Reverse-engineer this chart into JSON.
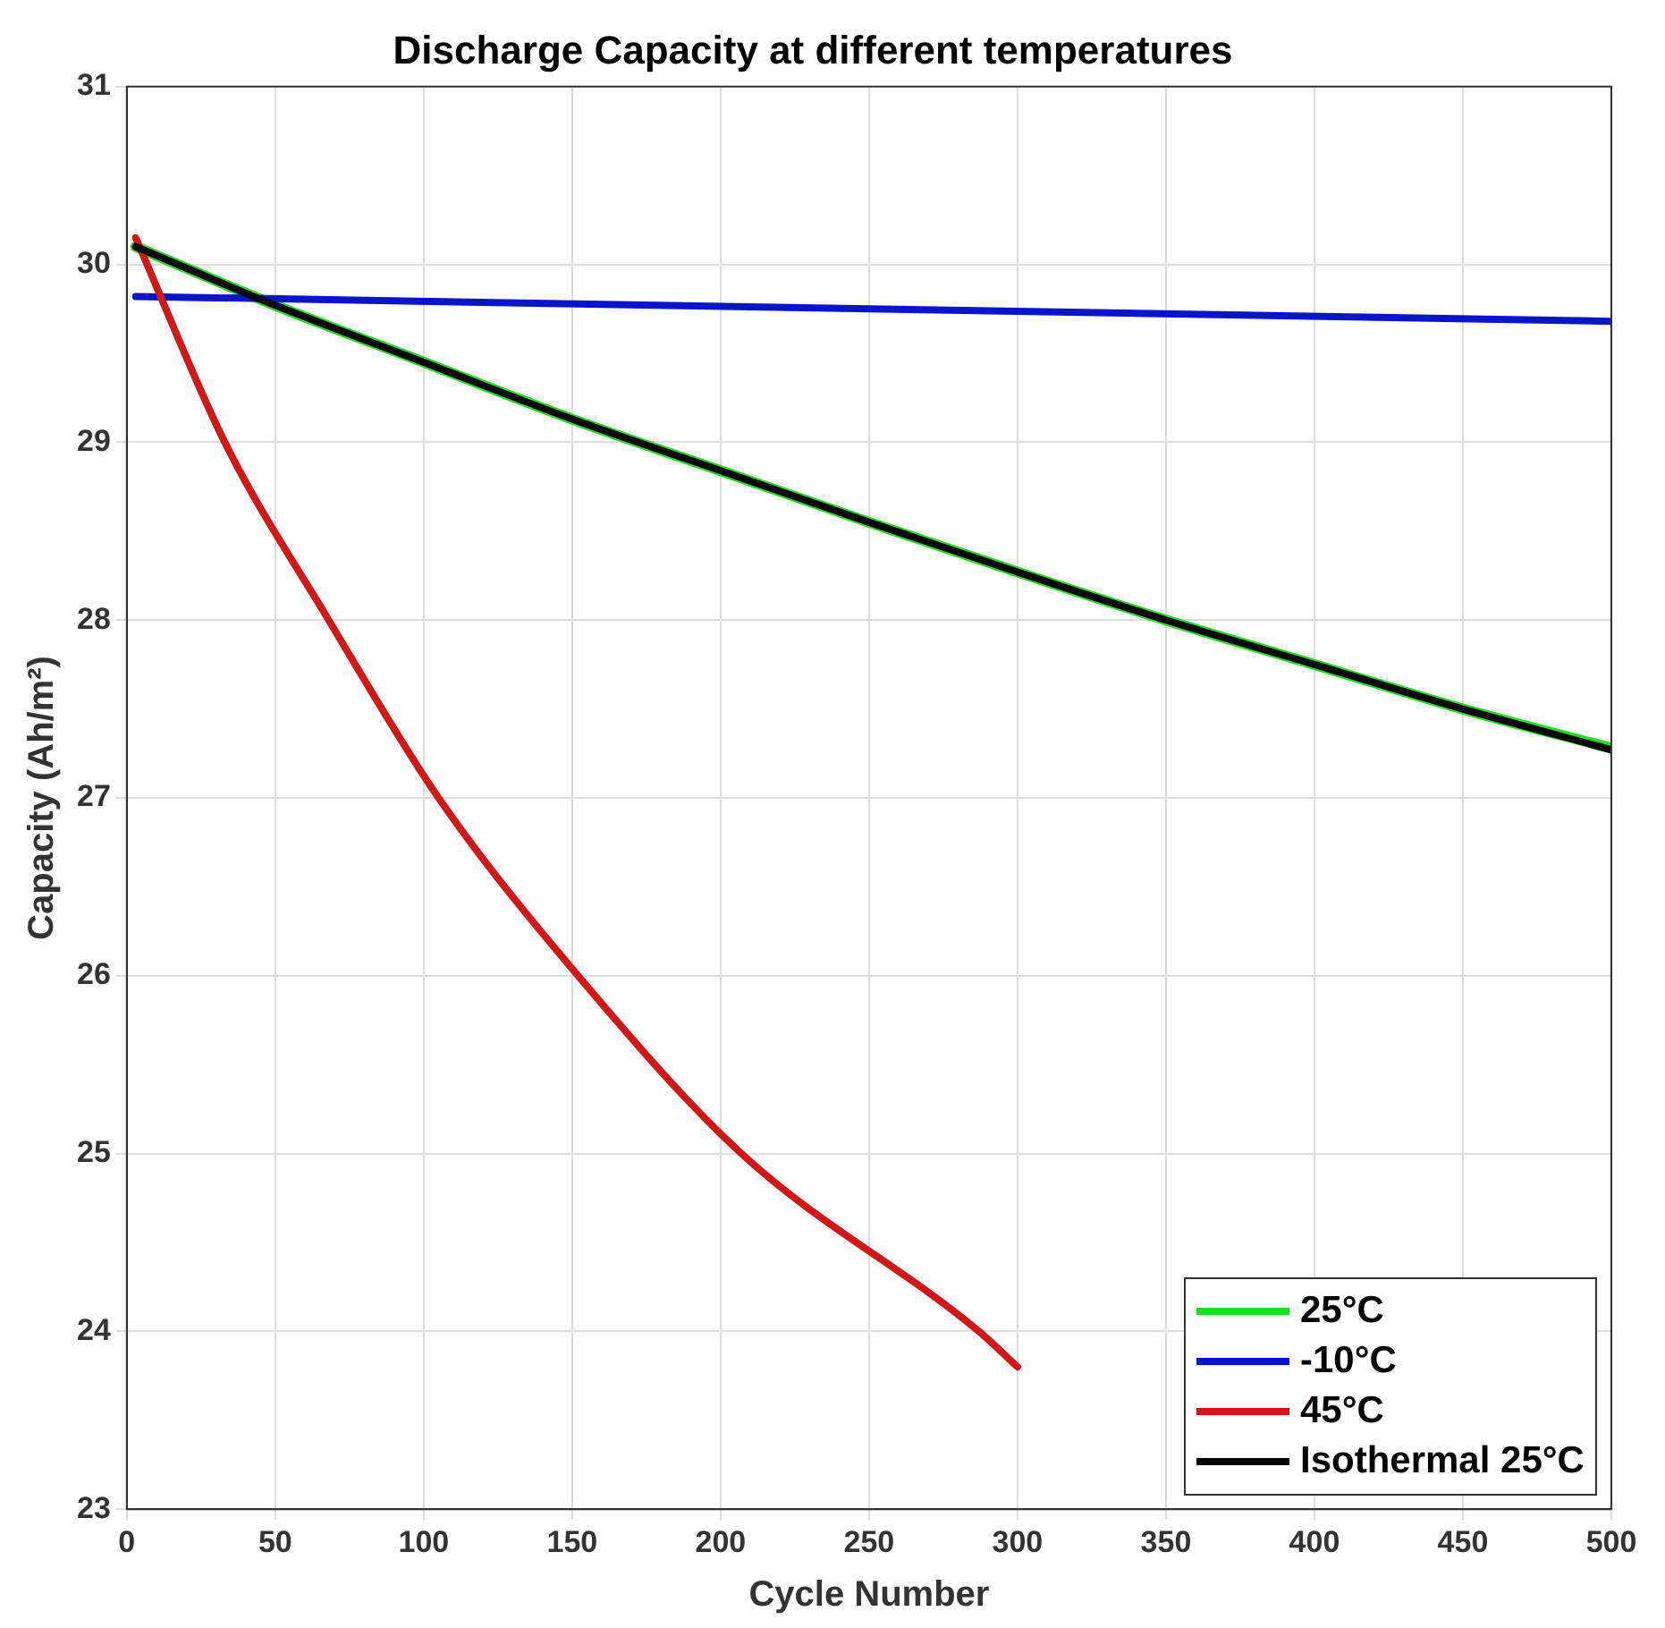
{
  "chart_data": {
    "type": "line",
    "title": "Discharge Capacity at different temperatures",
    "xlabel": "Cycle Number",
    "ylabel": "Capacity (Ah/m²)",
    "xlim": [
      0,
      500
    ],
    "xticks": [
      0,
      50,
      100,
      150,
      200,
      250,
      300,
      350,
      400,
      450,
      500
    ],
    "ylim": [
      23,
      31
    ],
    "yticks": [
      23,
      24,
      25,
      26,
      27,
      28,
      29,
      30,
      31
    ],
    "grid": true,
    "legend": "bottom right",
    "marker": "none",
    "line_style": "solid",
    "series": [
      {
        "name": "25°C",
        "color": "#22dd22",
        "x": [
          3,
          50,
          100,
          150,
          200,
          250,
          300,
          350,
          400,
          450,
          500
        ],
        "values": [
          30.1,
          29.77,
          29.45,
          29.13,
          28.84,
          28.55,
          28.27,
          28.0,
          27.75,
          27.5,
          27.28
        ]
      },
      {
        "name": "-10°C",
        "color": "#0a14c8",
        "x": [
          3,
          250,
          500
        ],
        "values": [
          29.82,
          29.75,
          29.68
        ]
      },
      {
        "name": "45°C",
        "color": "#d01818",
        "x": [
          3,
          33,
          68,
          105,
          152,
          207,
          287,
          300
        ],
        "values": [
          30.15,
          29.0,
          28.0,
          27.0,
          26.0,
          25.0,
          24.0,
          23.8
        ]
      },
      {
        "name": "Isothermal 25°C",
        "color": "#000000",
        "x": [
          3,
          50,
          100,
          150,
          200,
          250,
          300,
          350,
          400,
          450,
          500
        ],
        "values": [
          30.1,
          29.77,
          29.45,
          29.13,
          28.84,
          28.55,
          28.27,
          28.0,
          27.75,
          27.5,
          27.27
        ]
      }
    ]
  }
}
